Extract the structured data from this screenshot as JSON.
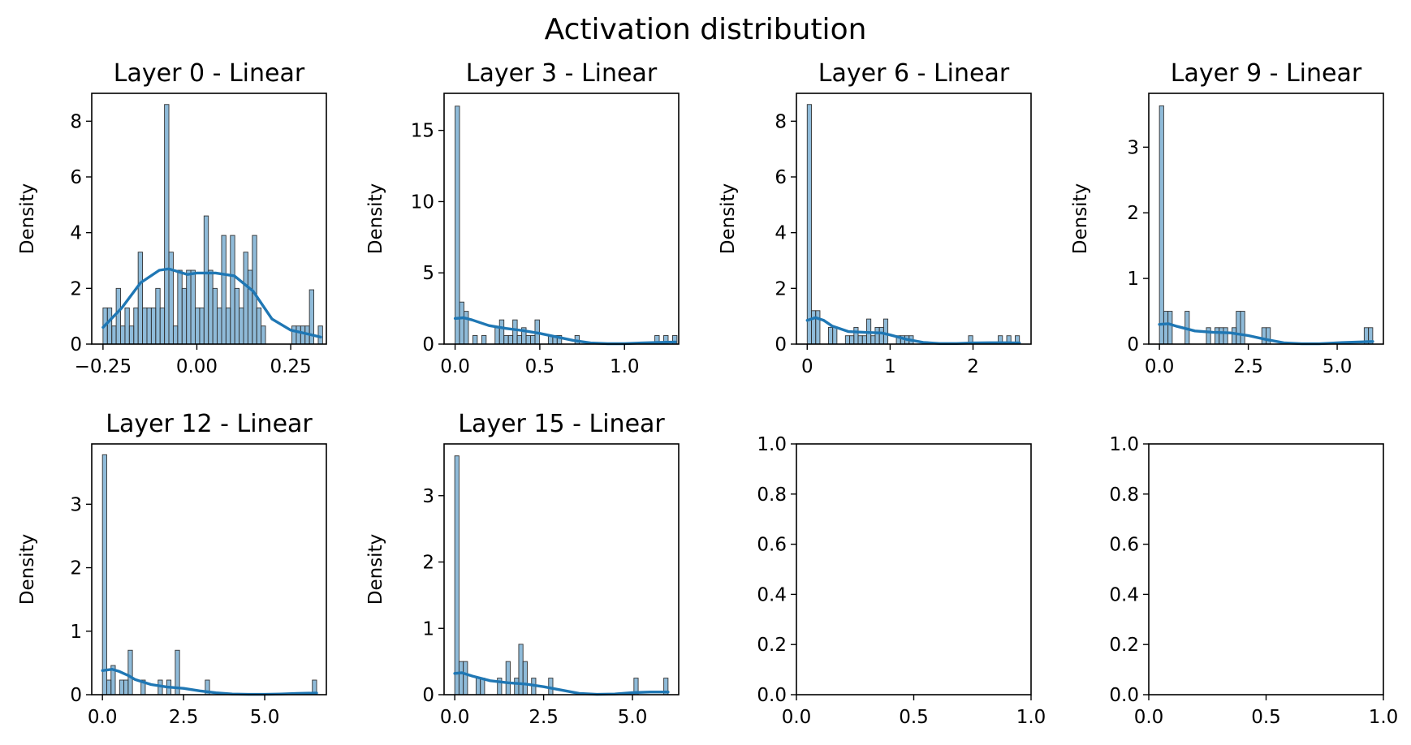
{
  "figure_title": "Activation distribution",
  "chart_data": [
    {
      "type": "bar",
      "title": "Layer 0 - Linear",
      "ylabel": "Density",
      "xlim": [
        -0.28,
        0.345
      ],
      "ylim": [
        0,
        9.0
      ],
      "xticks": [
        -0.25,
        0.0,
        0.25
      ],
      "xtick_labels": [
        "−0.25",
        "0.00",
        "0.25"
      ],
      "yticks": [
        0,
        2,
        4,
        6,
        8
      ],
      "ytick_labels": [
        "0",
        "2",
        "4",
        "6",
        "8"
      ],
      "bin_edges": [
        -0.25,
        -0.2383,
        -0.2266,
        -0.2149,
        -0.2032,
        -0.1915,
        -0.1798,
        -0.1681,
        -0.1564,
        -0.1447,
        -0.133,
        -0.1213,
        -0.1096,
        -0.0979,
        -0.0862,
        -0.0745,
        -0.0628,
        -0.0511,
        -0.0394,
        -0.0277,
        -0.016,
        -0.0043,
        0.0074,
        0.0191,
        0.0308,
        0.0425,
        0.0542,
        0.0659,
        0.0776,
        0.0893,
        0.101,
        0.1127,
        0.1244,
        0.1361,
        0.1478,
        0.1595,
        0.1712,
        0.1829,
        0.1946,
        0.2063,
        0.218,
        0.2297,
        0.2414,
        0.2531,
        0.2648,
        0.2765,
        0.2882,
        0.2999,
        0.3116,
        0.3233,
        0.335
      ],
      "values": [
        1.3,
        1.3,
        0.65,
        2.0,
        0.65,
        1.3,
        0.65,
        1.3,
        3.3,
        1.3,
        1.3,
        1.3,
        2.0,
        1.3,
        8.6,
        3.3,
        0.65,
        2.65,
        2.0,
        2.65,
        2.65,
        1.3,
        1.3,
        4.6,
        2.65,
        2.0,
        1.3,
        3.9,
        1.3,
        3.9,
        2.0,
        1.3,
        3.3,
        2.65,
        3.9,
        1.3,
        0.65,
        0,
        0,
        0,
        0,
        0,
        0,
        0.65,
        0.65,
        0.65,
        0.65,
        1.95,
        0,
        0.65
      ],
      "kde": {
        "x": [
          -0.25,
          -0.2,
          -0.15,
          -0.1,
          -0.075,
          -0.05,
          -0.025,
          0.0,
          0.05,
          0.1,
          0.15,
          0.2,
          0.25,
          0.3,
          0.33
        ],
        "y": [
          0.6,
          1.3,
          2.2,
          2.65,
          2.7,
          2.6,
          2.5,
          2.55,
          2.55,
          2.45,
          1.9,
          0.9,
          0.5,
          0.35,
          0.25
        ]
      }
    },
    {
      "type": "bar",
      "title": "Layer 3 - Linear",
      "ylabel": "Density",
      "xlim": [
        -0.065,
        1.32
      ],
      "ylim": [
        0,
        17.6
      ],
      "xticks": [
        0.0,
        0.5,
        1.0
      ],
      "xtick_labels": [
        "0.0",
        "0.5",
        "1.0"
      ],
      "yticks": [
        0,
        5,
        10,
        15
      ],
      "ytick_labels": [
        "0",
        "5",
        "10",
        "15"
      ],
      "bin_edges": [
        0.0,
        0.0262,
        0.0524,
        0.0786,
        0.1048,
        0.131,
        0.1572,
        0.1834,
        0.2096,
        0.2358,
        0.262,
        0.2882,
        0.3144,
        0.3406,
        0.3668,
        0.393,
        0.4192,
        0.4454,
        0.4716,
        0.4978,
        0.524,
        0.5502,
        0.5764,
        0.6026,
        0.6288,
        0.655,
        0.6812,
        0.7074,
        0.7336,
        0.7598,
        0.786,
        0.8122,
        0.8384,
        0.8646,
        0.8908,
        0.917,
        0.9432,
        0.9694,
        0.9956,
        1.0218,
        1.048,
        1.0742,
        1.1004,
        1.1266,
        1.1528,
        1.179,
        1.2052,
        1.2314,
        1.2576,
        1.2838,
        1.31
      ],
      "values": [
        16.7,
        2.95,
        2.3,
        0,
        0.6,
        0,
        0.6,
        0,
        0,
        1.15,
        1.7,
        0.6,
        0.6,
        1.7,
        0.6,
        1.15,
        0.6,
        0.6,
        1.7,
        0,
        0,
        0.6,
        0.6,
        0.6,
        0,
        0,
        0,
        0.6,
        0,
        0,
        0,
        0,
        0,
        0,
        0,
        0,
        0,
        0,
        0,
        0,
        0,
        0,
        0,
        0,
        0,
        0.6,
        0,
        0.6,
        0,
        0.6
      ],
      "kde": {
        "x": [
          0.0,
          0.05,
          0.1,
          0.2,
          0.3,
          0.4,
          0.5,
          0.6,
          0.7,
          0.8,
          0.9,
          1.0,
          1.1,
          1.2,
          1.3
        ],
        "y": [
          1.8,
          1.85,
          1.7,
          1.3,
          1.1,
          0.95,
          0.75,
          0.5,
          0.25,
          0.08,
          0.03,
          0.03,
          0.08,
          0.12,
          0.15
        ]
      }
    },
    {
      "type": "bar",
      "title": "Layer 6 - Linear",
      "ylabel": "Density",
      "xlim": [
        -0.13,
        2.7
      ],
      "ylim": [
        0,
        9.0
      ],
      "xticks": [
        0,
        1,
        2
      ],
      "xtick_labels": [
        "0",
        "1",
        "2"
      ],
      "yticks": [
        0,
        2,
        4,
        6,
        8
      ],
      "ytick_labels": [
        "0",
        "2",
        "4",
        "6",
        "8"
      ],
      "bin_edges": [
        0.0,
        0.0512,
        0.1024,
        0.1536,
        0.2048,
        0.256,
        0.3072,
        0.3584,
        0.4096,
        0.4608,
        0.512,
        0.5632,
        0.6144,
        0.6656,
        0.7168,
        0.768,
        0.8192,
        0.8704,
        0.9216,
        0.9728,
        1.024,
        1.0752,
        1.1264,
        1.1776,
        1.2288,
        1.28,
        1.3312,
        1.3824,
        1.4336,
        1.4848,
        1.536,
        1.5872,
        1.6384,
        1.6896,
        1.7408,
        1.792,
        1.8432,
        1.8944,
        1.9456,
        1.9968,
        2.048,
        2.0992,
        2.1504,
        2.2016,
        2.2528,
        2.304,
        2.3552,
        2.4064,
        2.4576,
        2.5088,
        2.56
      ],
      "values": [
        8.6,
        1.2,
        1.2,
        0,
        0,
        0.6,
        0.6,
        0,
        0,
        0.3,
        0.3,
        0.6,
        0.3,
        0.3,
        0.9,
        0.3,
        0.6,
        0.6,
        0.9,
        0,
        0,
        0.3,
        0.3,
        0.3,
        0.3,
        0,
        0,
        0,
        0,
        0,
        0,
        0,
        0,
        0,
        0,
        0,
        0,
        0,
        0.3,
        0,
        0,
        0,
        0,
        0,
        0,
        0.3,
        0,
        0.3,
        0,
        0.3
      ],
      "kde": {
        "x": [
          0.0,
          0.1,
          0.2,
          0.3,
          0.5,
          0.7,
          0.9,
          1.0,
          1.1,
          1.2,
          1.4,
          1.6,
          1.8,
          2.0,
          2.2,
          2.4,
          2.56
        ],
        "y": [
          0.85,
          0.95,
          0.85,
          0.65,
          0.45,
          0.42,
          0.4,
          0.33,
          0.25,
          0.17,
          0.06,
          0.02,
          0.02,
          0.04,
          0.05,
          0.05,
          0.04
        ]
      }
    },
    {
      "type": "bar",
      "title": "Layer 9 - Linear",
      "ylabel": "Density",
      "xlim": [
        -0.3,
        6.3
      ],
      "ylim": [
        0,
        3.82
      ],
      "xticks": [
        0.0,
        2.5,
        5.0
      ],
      "xtick_labels": [
        "0.0",
        "2.5",
        "5.0"
      ],
      "yticks": [
        0,
        1,
        2,
        3
      ],
      "ytick_labels": [
        "0",
        "1",
        "2",
        "3"
      ],
      "bin_edges": [
        0.0,
        0.12,
        0.24,
        0.36,
        0.48,
        0.6,
        0.72,
        0.84,
        0.96,
        1.08,
        1.2,
        1.32,
        1.44,
        1.56,
        1.68,
        1.8,
        1.92,
        2.04,
        2.16,
        2.28,
        2.4,
        2.52,
        2.64,
        2.76,
        2.88,
        3.0,
        3.12,
        3.24,
        3.36,
        3.48,
        3.6,
        3.72,
        3.84,
        3.96,
        4.08,
        4.2,
        4.32,
        4.44,
        4.56,
        4.68,
        4.8,
        4.92,
        5.04,
        5.16,
        5.28,
        5.4,
        5.52,
        5.64,
        5.76,
        5.88,
        6.0
      ],
      "values": [
        3.63,
        0.5,
        0.5,
        0,
        0,
        0,
        0.5,
        0,
        0,
        0,
        0,
        0.25,
        0,
        0.25,
        0.25,
        0.25,
        0,
        0.25,
        0.5,
        0.5,
        0,
        0,
        0,
        0,
        0.25,
        0.25,
        0,
        0,
        0,
        0,
        0,
        0,
        0,
        0,
        0,
        0,
        0,
        0,
        0,
        0,
        0,
        0,
        0,
        0,
        0,
        0,
        0,
        0,
        0.25,
        0.25
      ],
      "kde": {
        "x": [
          0.0,
          0.25,
          0.5,
          1.0,
          1.5,
          2.0,
          2.5,
          3.0,
          3.5,
          4.0,
          4.5,
          5.0,
          5.5,
          6.0
        ],
        "y": [
          0.3,
          0.31,
          0.27,
          0.2,
          0.18,
          0.17,
          0.13,
          0.07,
          0.02,
          0.005,
          0.005,
          0.02,
          0.03,
          0.04
        ]
      }
    },
    {
      "type": "bar",
      "title": "Layer 12 - Linear",
      "ylabel": "Density",
      "xlim": [
        -0.33,
        6.9
      ],
      "ylim": [
        0,
        3.95
      ],
      "xticks": [
        0.0,
        2.5,
        5.0
      ],
      "xtick_labels": [
        "0.0",
        "2.5",
        "5.0"
      ],
      "yticks": [
        0,
        1,
        2,
        3
      ],
      "ytick_labels": [
        "0",
        "1",
        "2",
        "3"
      ],
      "bin_edges": [
        0.0,
        0.132,
        0.264,
        0.396,
        0.528,
        0.66,
        0.792,
        0.924,
        1.056,
        1.188,
        1.32,
        1.452,
        1.584,
        1.716,
        1.848,
        1.98,
        2.112,
        2.244,
        2.376,
        2.508,
        2.64,
        2.772,
        2.904,
        3.036,
        3.168,
        3.3,
        3.432,
        3.564,
        3.696,
        3.828,
        3.96,
        4.092,
        4.224,
        4.356,
        4.488,
        4.62,
        4.752,
        4.884,
        5.016,
        5.148,
        5.28,
        5.412,
        5.544,
        5.676,
        5.808,
        5.94,
        6.072,
        6.204,
        6.336,
        6.468,
        6.6
      ],
      "values": [
        3.78,
        0.23,
        0.46,
        0,
        0.23,
        0.23,
        0.7,
        0,
        0,
        0.23,
        0,
        0,
        0,
        0.23,
        0,
        0.23,
        0,
        0.7,
        0,
        0,
        0,
        0,
        0,
        0,
        0.23,
        0,
        0,
        0,
        0,
        0,
        0,
        0,
        0,
        0,
        0,
        0,
        0,
        0,
        0,
        0,
        0,
        0,
        0,
        0,
        0,
        0,
        0,
        0,
        0,
        0.23
      ],
      "kde": {
        "x": [
          0.0,
          0.3,
          0.5,
          0.8,
          1.0,
          1.5,
          2.0,
          2.5,
          3.0,
          3.5,
          4.0,
          4.5,
          5.0,
          5.5,
          6.0,
          6.6
        ],
        "y": [
          0.38,
          0.4,
          0.37,
          0.3,
          0.24,
          0.16,
          0.12,
          0.1,
          0.06,
          0.03,
          0.01,
          0.005,
          0.005,
          0.01,
          0.02,
          0.025
        ]
      }
    },
    {
      "type": "bar",
      "title": "Layer 15 - Linear",
      "ylabel": "Density",
      "xlim": [
        -0.3,
        6.3
      ],
      "ylim": [
        0,
        3.78
      ],
      "xticks": [
        0.0,
        2.5,
        5.0
      ],
      "xtick_labels": [
        "0.0",
        "2.5",
        "5.0"
      ],
      "yticks": [
        0,
        1,
        2,
        3
      ],
      "ytick_labels": [
        "0",
        "1",
        "2",
        "3"
      ],
      "bin_edges": [
        0.0,
        0.12,
        0.24,
        0.36,
        0.48,
        0.6,
        0.72,
        0.84,
        0.96,
        1.08,
        1.2,
        1.32,
        1.44,
        1.56,
        1.68,
        1.8,
        1.92,
        2.04,
        2.16,
        2.28,
        2.4,
        2.52,
        2.64,
        2.76,
        2.88,
        3.0,
        3.12,
        3.24,
        3.36,
        3.48,
        3.6,
        3.72,
        3.84,
        3.96,
        4.08,
        4.2,
        4.32,
        4.44,
        4.56,
        4.68,
        4.8,
        4.92,
        5.04,
        5.16,
        5.28,
        5.4,
        5.52,
        5.64,
        5.76,
        5.88,
        6.0
      ],
      "values": [
        3.6,
        0.5,
        0.5,
        0,
        0,
        0.25,
        0.25,
        0,
        0,
        0,
        0.25,
        0,
        0.5,
        0,
        0.25,
        0.76,
        0.5,
        0,
        0.25,
        0,
        0,
        0,
        0.25,
        0,
        0,
        0,
        0,
        0,
        0,
        0,
        0,
        0,
        0,
        0,
        0,
        0,
        0,
        0,
        0,
        0,
        0,
        0,
        0.25,
        0,
        0,
        0,
        0,
        0,
        0,
        0.25
      ],
      "kde": {
        "x": [
          0.0,
          0.2,
          0.5,
          1.0,
          1.5,
          2.0,
          2.5,
          3.0,
          3.5,
          4.0,
          4.5,
          5.0,
          5.5,
          6.0
        ],
        "y": [
          0.32,
          0.33,
          0.28,
          0.21,
          0.18,
          0.16,
          0.12,
          0.07,
          0.02,
          0.005,
          0.01,
          0.03,
          0.04,
          0.04
        ]
      }
    },
    {
      "type": "bar",
      "title": "",
      "ylabel": "",
      "xlim": [
        0,
        1
      ],
      "ylim": [
        0,
        1
      ],
      "xticks": [
        0.0,
        0.5,
        1.0
      ],
      "xtick_labels": [
        "0.0",
        "0.5",
        "1.0"
      ],
      "yticks": [
        0.0,
        0.2,
        0.4,
        0.6,
        0.8,
        1.0
      ],
      "ytick_labels": [
        "0.0",
        "0.2",
        "0.4",
        "0.6",
        "0.8",
        "1.0"
      ],
      "bin_edges": [],
      "values": []
    },
    {
      "type": "bar",
      "title": "",
      "ylabel": "",
      "xlim": [
        0,
        1
      ],
      "ylim": [
        0,
        1
      ],
      "xticks": [
        0.0,
        0.5,
        1.0
      ],
      "xtick_labels": [
        "0.0",
        "0.5",
        "1.0"
      ],
      "yticks": [
        0.0,
        0.2,
        0.4,
        0.6,
        0.8,
        1.0
      ],
      "ytick_labels": [
        "0.0",
        "0.2",
        "0.4",
        "0.6",
        "0.8",
        "1.0"
      ],
      "bin_edges": [],
      "values": []
    }
  ]
}
